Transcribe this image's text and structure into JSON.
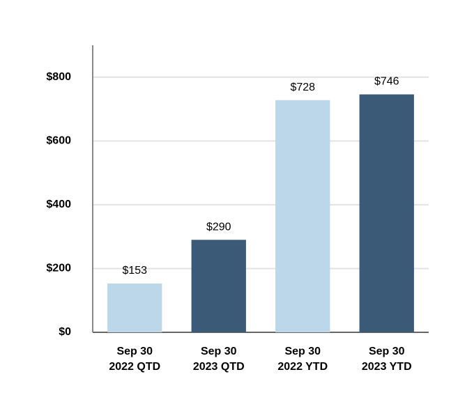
{
  "chart_data": {
    "type": "bar",
    "categories": [
      [
        "Sep 30",
        "2022 QTD"
      ],
      [
        "Sep 30",
        "2023 QTD"
      ],
      [
        "Sep 30",
        "2022 YTD"
      ],
      [
        "Sep 30",
        "2023 YTD"
      ]
    ],
    "values": [
      153,
      290,
      728,
      746
    ],
    "value_labels": [
      "$153",
      "$290",
      "$728",
      "$746"
    ],
    "colors": [
      "#bcd7e9",
      "#3b5a78",
      "#bcd7e9",
      "#3b5a78"
    ],
    "ylim": [
      0,
      900
    ],
    "yticks": [
      {
        "value": 0,
        "label": "$0"
      },
      {
        "value": 200,
        "label": "$200"
      },
      {
        "value": 400,
        "label": "$400"
      },
      {
        "value": 600,
        "label": "$600"
      },
      {
        "value": 800,
        "label": "$800"
      }
    ],
    "grid": true
  }
}
